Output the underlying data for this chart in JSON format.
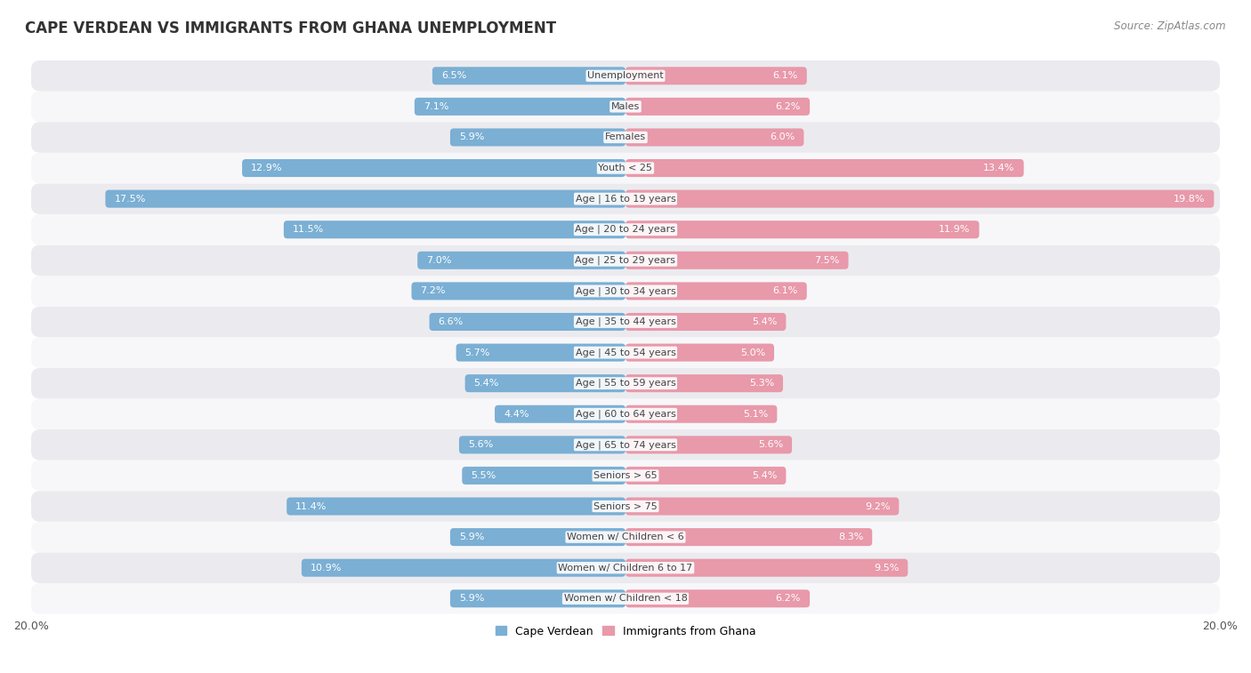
{
  "title": "CAPE VERDEAN VS IMMIGRANTS FROM GHANA UNEMPLOYMENT",
  "source": "Source: ZipAtlas.com",
  "categories": [
    "Unemployment",
    "Males",
    "Females",
    "Youth < 25",
    "Age | 16 to 19 years",
    "Age | 20 to 24 years",
    "Age | 25 to 29 years",
    "Age | 30 to 34 years",
    "Age | 35 to 44 years",
    "Age | 45 to 54 years",
    "Age | 55 to 59 years",
    "Age | 60 to 64 years",
    "Age | 65 to 74 years",
    "Seniors > 65",
    "Seniors > 75",
    "Women w/ Children < 6",
    "Women w/ Children 6 to 17",
    "Women w/ Children < 18"
  ],
  "cape_verdean": [
    6.5,
    7.1,
    5.9,
    12.9,
    17.5,
    11.5,
    7.0,
    7.2,
    6.6,
    5.7,
    5.4,
    4.4,
    5.6,
    5.5,
    11.4,
    5.9,
    10.9,
    5.9
  ],
  "ghana": [
    6.1,
    6.2,
    6.0,
    13.4,
    19.8,
    11.9,
    7.5,
    6.1,
    5.4,
    5.0,
    5.3,
    5.1,
    5.6,
    5.4,
    9.2,
    8.3,
    9.5,
    6.2
  ],
  "cape_verdean_color": "#7bafd4",
  "ghana_color": "#e899aa",
  "row_light": "#f7f7f9",
  "row_dark": "#ebebef",
  "max_value": 20.0,
  "bar_height": 0.58,
  "legend_cape_verdean": "Cape Verdean",
  "legend_ghana": "Immigrants from Ghana",
  "inside_label_threshold": 3.5
}
